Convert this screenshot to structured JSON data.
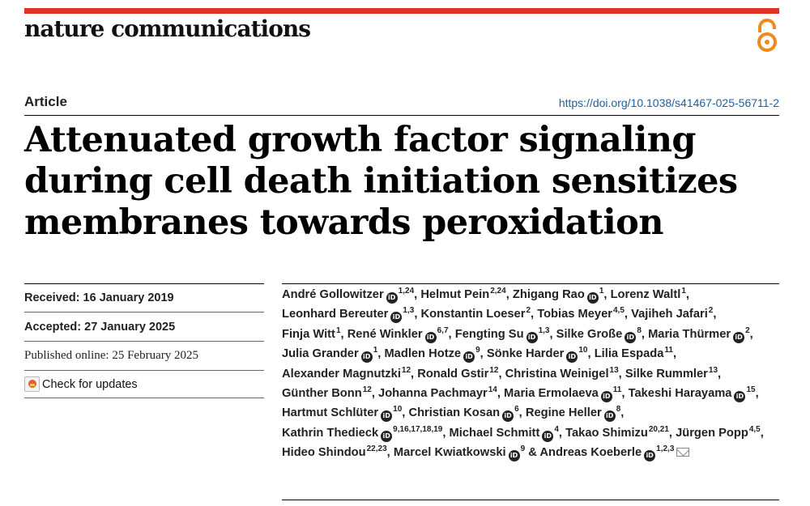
{
  "header": {
    "journal": "nature communications",
    "open_access_icon": "open-access-icon",
    "accent": "#e0312b"
  },
  "article": {
    "type": "Article",
    "doi": "https://doi.org/10.1038/s41467-025-56711-2",
    "title": "Attenuated growth factor signaling during cell death initiation sensitizes membranes towards peroxidation"
  },
  "sidebar": {
    "received": "Received: 16 January 2019",
    "accepted": "Accepted: 27 January 2025",
    "published": "Published online: 25 February 2025",
    "check_updates": "Check for updates"
  },
  "authors": [
    {
      "name": "André Gollowitzer",
      "orcid": true,
      "aff": "1,24",
      "sep": ","
    },
    {
      "name": "Helmut Pein",
      "orcid": false,
      "aff": "2,24",
      "sep": ","
    },
    {
      "name": "Zhigang Rao",
      "orcid": true,
      "aff": "1",
      "sep": ","
    },
    {
      "name": "Lorenz Waltl",
      "orcid": false,
      "aff": "1",
      "sep": ","
    },
    {
      "name": "Leonhard Bereuter",
      "orcid": true,
      "aff": "1,3",
      "sep": ","
    },
    {
      "name": "Konstantin Loeser",
      "orcid": false,
      "aff": "2",
      "sep": ","
    },
    {
      "name": "Tobias Meyer",
      "orcid": false,
      "aff": "4,5",
      "sep": ","
    },
    {
      "name": "Vajiheh Jafari",
      "orcid": false,
      "aff": "2",
      "sep": ","
    },
    {
      "name": "Finja Witt",
      "orcid": false,
      "aff": "1",
      "sep": ","
    },
    {
      "name": "René Winkler",
      "orcid": true,
      "aff": "6,7",
      "sep": ","
    },
    {
      "name": "Fengting Su",
      "orcid": true,
      "aff": "1,3",
      "sep": ","
    },
    {
      "name": "Silke Große",
      "orcid": true,
      "aff": "8",
      "sep": ","
    },
    {
      "name": "Maria Thürmer",
      "orcid": true,
      "aff": "2",
      "sep": ","
    },
    {
      "name": "Julia Grander",
      "orcid": true,
      "aff": "1",
      "sep": ","
    },
    {
      "name": "Madlen Hotze",
      "orcid": true,
      "aff": "9",
      "sep": ","
    },
    {
      "name": "Sönke Harder",
      "orcid": true,
      "aff": "10",
      "sep": ","
    },
    {
      "name": "Lilia Espada",
      "orcid": false,
      "aff": "11",
      "sep": ","
    },
    {
      "name": "Alexander Magnutzki",
      "orcid": false,
      "aff": "12",
      "sep": ","
    },
    {
      "name": "Ronald Gstir",
      "orcid": false,
      "aff": "12",
      "sep": ","
    },
    {
      "name": "Christina Weinigel",
      "orcid": false,
      "aff": "13",
      "sep": ","
    },
    {
      "name": "Silke Rummler",
      "orcid": false,
      "aff": "13",
      "sep": ","
    },
    {
      "name": "Günther Bonn",
      "orcid": false,
      "aff": "12",
      "sep": ","
    },
    {
      "name": "Johanna Pachmayr",
      "orcid": false,
      "aff": "14",
      "sep": ","
    },
    {
      "name": "Maria Ermolaeva",
      "orcid": true,
      "aff": "11",
      "sep": ","
    },
    {
      "name": "Takeshi Harayama",
      "orcid": true,
      "aff": "15",
      "sep": ","
    },
    {
      "name": "Hartmut Schlüter",
      "orcid": true,
      "aff": "10",
      "sep": ","
    },
    {
      "name": "Christian Kosan",
      "orcid": true,
      "aff": "6",
      "sep": ","
    },
    {
      "name": "Regine Heller",
      "orcid": true,
      "aff": "8",
      "sep": ","
    },
    {
      "name": "Kathrin Thedieck",
      "orcid": true,
      "aff": "9,16,17,18,19",
      "sep": ","
    },
    {
      "name": "Michael Schmitt",
      "orcid": true,
      "aff": "4",
      "sep": ","
    },
    {
      "name": "Takao Shimizu",
      "orcid": false,
      "aff": "20,21",
      "sep": ","
    },
    {
      "name": "Jürgen Popp",
      "orcid": false,
      "aff": "4,5",
      "sep": ","
    },
    {
      "name": "Hideo Shindou",
      "orcid": false,
      "aff": "22,23",
      "sep": ","
    },
    {
      "name": "Marcel Kwiatkowski",
      "orcid": true,
      "aff": "9",
      "sep": " &"
    },
    {
      "name": "Andreas Koeberle",
      "orcid": true,
      "aff": "1,2,3",
      "sep": "",
      "corresponding": true
    }
  ]
}
